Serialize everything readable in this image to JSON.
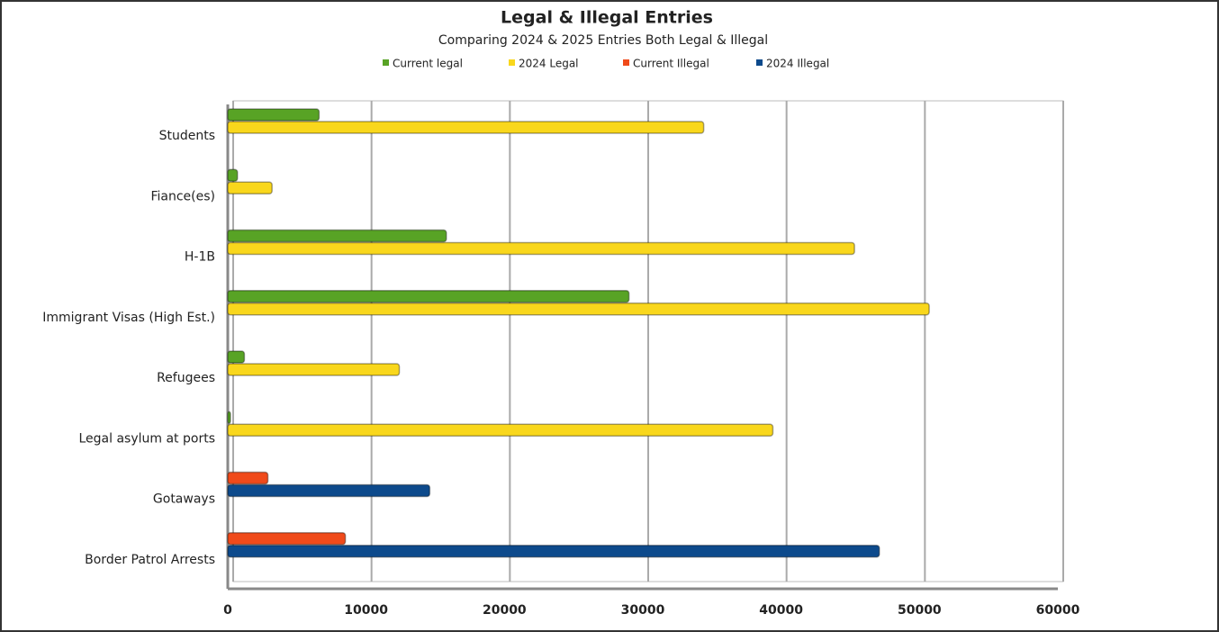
{
  "chart_data": {
    "type": "hbar",
    "title": "Legal & Illegal Entries",
    "subtitle": "Comparing 2024 & 2025 Entries Both Legal & Illegal",
    "categories": [
      "Students",
      "Fiance(es)",
      "H-1B",
      "Immigrant Visas (High Est.)",
      "Refugees",
      "Legal asylum at ports",
      "Gotaways",
      "Border Patrol Arrests"
    ],
    "series": [
      {
        "name": "Current legal",
        "color": "#58a325",
        "values": [
          6600,
          700,
          15800,
          29000,
          1200,
          100,
          null,
          null
        ]
      },
      {
        "name": "2024 Legal",
        "color": "#f9d71c",
        "values": [
          34400,
          3200,
          45300,
          50700,
          12400,
          39400,
          null,
          null
        ]
      },
      {
        "name": "Current Illegal",
        "color": "#f04a1a",
        "values": [
          null,
          null,
          null,
          null,
          null,
          null,
          2900,
          8500
        ]
      },
      {
        "name": "2024 Illegal",
        "color": "#0d4a8c",
        "values": [
          null,
          null,
          null,
          null,
          null,
          null,
          14600,
          47100
        ]
      }
    ],
    "xlim": [
      0,
      60000
    ],
    "xticks": [
      0,
      10000,
      20000,
      30000,
      40000,
      50000,
      60000
    ],
    "grid": true,
    "legend": "top"
  }
}
